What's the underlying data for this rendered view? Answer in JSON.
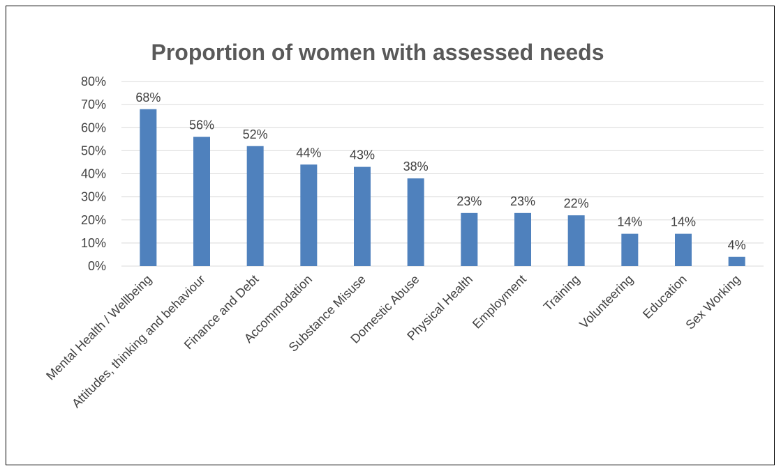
{
  "chart_data": {
    "type": "bar",
    "title": "Proportion of women with assessed needs",
    "categories": [
      "Mental Health / Wellbeing",
      "Attitudes, thinking and behaviour",
      "Finance and Debt",
      "Accommodation",
      "Substance Misuse",
      "Domestic Abuse",
      "Physical Health",
      "Employment",
      "Training",
      "Volunteering",
      "Education",
      "Sex Working"
    ],
    "values": [
      68,
      56,
      52,
      44,
      43,
      38,
      23,
      23,
      22,
      14,
      14,
      4
    ],
    "value_labels": [
      "68%",
      "56%",
      "52%",
      "44%",
      "43%",
      "38%",
      "23%",
      "23%",
      "22%",
      "14%",
      "14%",
      "4%"
    ],
    "ylim": [
      0,
      80
    ],
    "yticks": [
      "0%",
      "10%",
      "20%",
      "30%",
      "40%",
      "50%",
      "60%",
      "70%",
      "80%"
    ],
    "grid": true,
    "bar_color": "#4f81bd"
  }
}
